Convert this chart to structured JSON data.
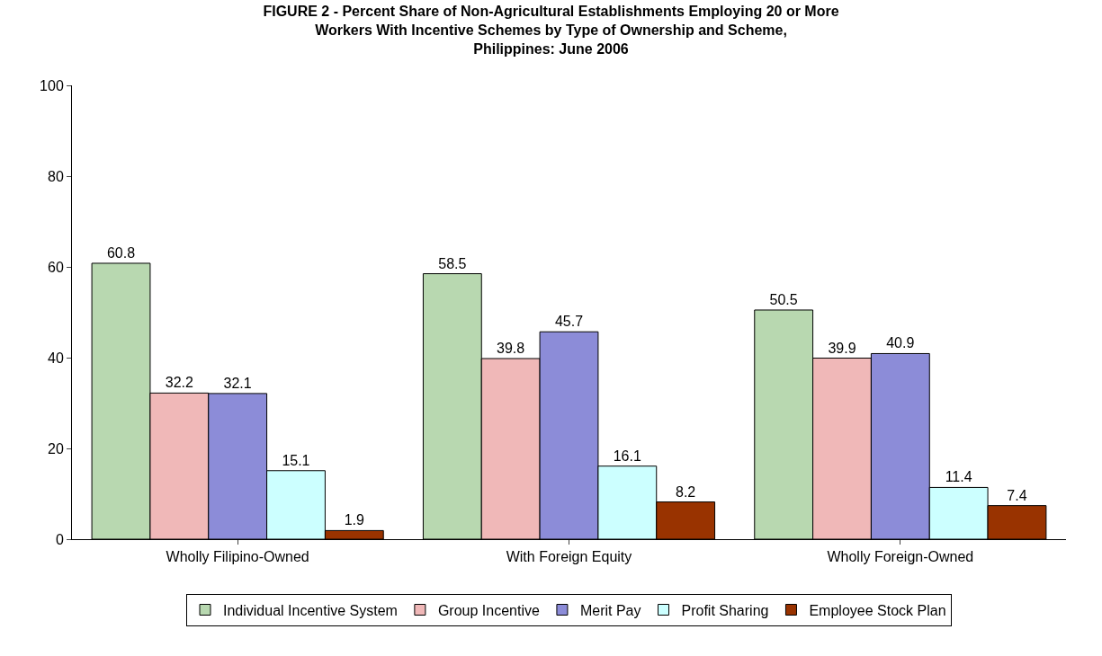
{
  "chart_data": {
    "type": "bar",
    "title": "FIGURE 2 - Percent Share of Non-Agricultural Establishments Employing 20 or More\nWorkers With Incentive Schemes by Type of Ownership and Scheme,\nPhilippines: June 2006",
    "categories": [
      "Wholly Filipino-Owned",
      "With Foreign Equity",
      "Wholly Foreign-Owned"
    ],
    "series": [
      {
        "name": "Individual Incentive System",
        "color": "#b8d8b0",
        "values": [
          60.8,
          58.5,
          50.5
        ]
      },
      {
        "name": "Group Incentive",
        "color": "#f0b8b8",
        "values": [
          32.2,
          39.8,
          39.9
        ]
      },
      {
        "name": "Merit Pay",
        "color": "#8c8cd8",
        "values": [
          32.1,
          45.7,
          40.9
        ]
      },
      {
        "name": "Profit Sharing",
        "color": "#ccffff",
        "values": [
          15.1,
          16.1,
          11.4
        ]
      },
      {
        "name": "Employee Stock Plan",
        "color": "#993300",
        "values": [
          1.9,
          8.2,
          7.4
        ]
      }
    ],
    "ylim": [
      0,
      100
    ],
    "yticks": [
      0,
      20,
      40,
      60,
      80,
      100
    ],
    "legend": "bottom",
    "data_labels": true
  }
}
